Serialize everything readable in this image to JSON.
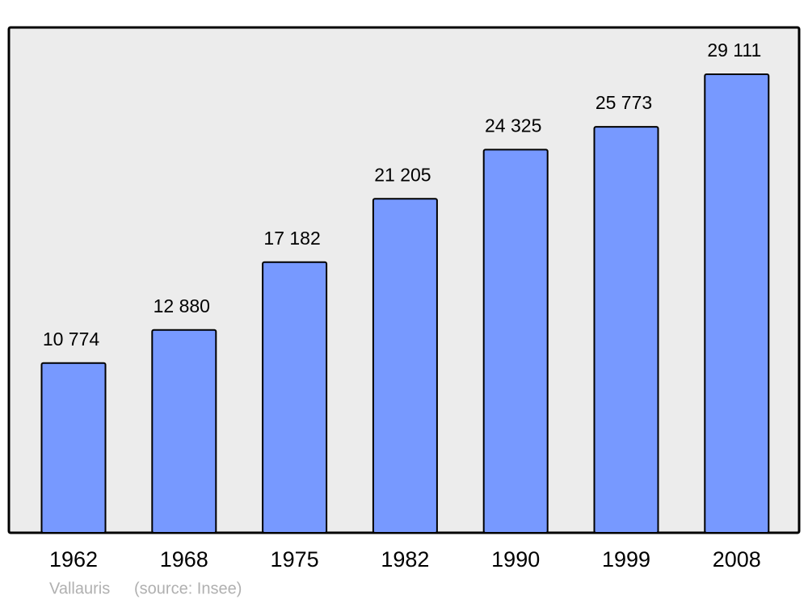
{
  "chart_data": {
    "type": "bar",
    "categories": [
      "1962",
      "1968",
      "1975",
      "1982",
      "1990",
      "1999",
      "2008"
    ],
    "values": [
      10774,
      12880,
      17182,
      21205,
      24325,
      25773,
      29111
    ],
    "value_labels": [
      "10 774",
      "12 880",
      "17 182",
      "21 205",
      "24 325",
      "25 773",
      "29 111"
    ],
    "color": "#7799ff",
    "background": "#ececec",
    "place": "Vallauris",
    "source": "(source: Insee)"
  }
}
